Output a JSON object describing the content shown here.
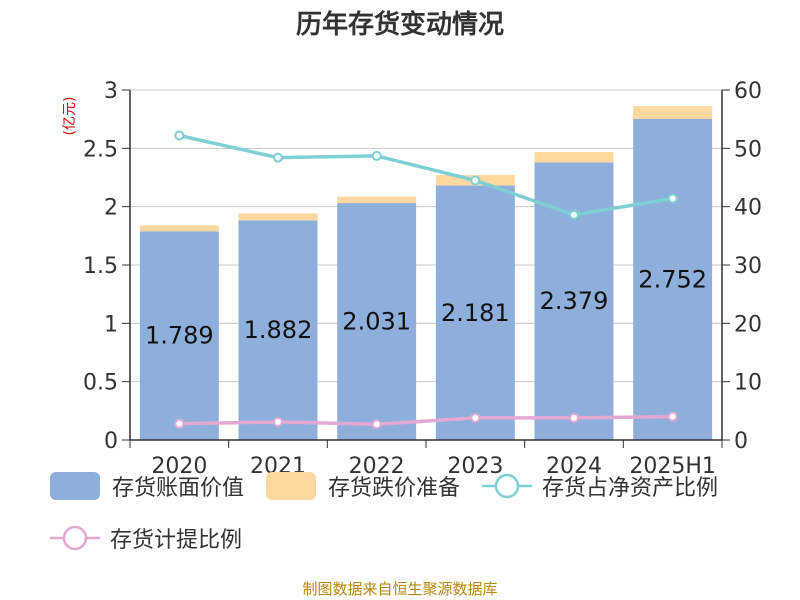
{
  "chart_data": {
    "type": "bar",
    "title": "历年存货变动情况",
    "ylabel": "(亿元)",
    "y2label": "",
    "categories": [
      "2020",
      "2021",
      "2022",
      "2023",
      "2024",
      "2025H1"
    ],
    "ylim": [
      0,
      3
    ],
    "y2lim": [
      0,
      60
    ],
    "yticks": [
      "0",
      "0.5",
      "1",
      "1.5",
      "2",
      "2.5",
      "3"
    ],
    "y2ticks": [
      "0",
      "10",
      "20",
      "30",
      "40",
      "50",
      "60"
    ],
    "series": [
      {
        "name": "存货账面价值",
        "type": "bar",
        "axis": "left",
        "color": "#8eaedb",
        "values": [
          1.789,
          1.882,
          2.031,
          2.181,
          2.379,
          2.752
        ],
        "labels": [
          "1.789",
          "1.882",
          "2.031",
          "2.181",
          "2.379",
          "2.752"
        ]
      },
      {
        "name": "存货跌价准备",
        "type": "bar",
        "axis": "left",
        "stacked": true,
        "color": "#fdd9a0",
        "values": [
          0.05,
          0.06,
          0.055,
          0.09,
          0.09,
          0.11
        ]
      },
      {
        "name": "存货占净资产比例",
        "type": "line",
        "axis": "right",
        "color": "#7fd0d4",
        "values": [
          52.2,
          48.4,
          48.7,
          44.5,
          38.6,
          41.4
        ]
      },
      {
        "name": "存货计提比例",
        "type": "line",
        "axis": "right",
        "color": "#e3a9d3",
        "values": [
          2.8,
          3.1,
          2.7,
          3.8,
          3.8,
          4.0
        ]
      }
    ],
    "legend_position": "bottom",
    "grid": true
  },
  "source": "制图数据来自恒生聚源数据库"
}
